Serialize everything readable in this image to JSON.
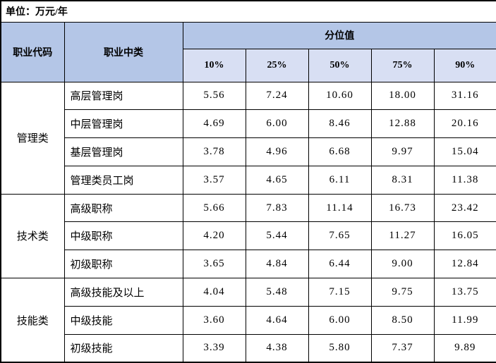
{
  "unit_label": "单位：万元/年",
  "colors": {
    "header_dark": "#b4c6e7",
    "header_light": "#d8dff3",
    "border": "#000000",
    "body_bg": "#ffffff"
  },
  "header": {
    "col_code": "职业代码",
    "col_category": "职业中类",
    "percentile_group": "分位值",
    "percentiles": [
      "10%",
      "25%",
      "50%",
      "75%",
      "90%"
    ]
  },
  "groups": [
    {
      "name": "管理类",
      "rows": [
        {
          "label": "高层管理岗",
          "values": [
            "5.56",
            "7.24",
            "10.60",
            "18.00",
            "31.16"
          ]
        },
        {
          "label": "中层管理岗",
          "values": [
            "4.69",
            "6.00",
            "8.46",
            "12.88",
            "20.16"
          ]
        },
        {
          "label": "基层管理岗",
          "values": [
            "3.78",
            "4.96",
            "6.68",
            "9.97",
            "15.04"
          ]
        },
        {
          "label": "管理类员工岗",
          "values": [
            "3.57",
            "4.65",
            "6.11",
            "8.31",
            "11.38"
          ]
        }
      ]
    },
    {
      "name": "技术类",
      "rows": [
        {
          "label": "高级职称",
          "values": [
            "5.66",
            "7.83",
            "11.14",
            "16.73",
            "23.42"
          ]
        },
        {
          "label": "中级职称",
          "values": [
            "4.20",
            "5.44",
            "7.65",
            "11.27",
            "16.05"
          ]
        },
        {
          "label": "初级职称",
          "values": [
            "3.65",
            "4.84",
            "6.44",
            "9.00",
            "12.84"
          ]
        }
      ]
    },
    {
      "name": "技能类",
      "rows": [
        {
          "label": "高级技能及以上",
          "values": [
            "4.04",
            "5.48",
            "7.15",
            "9.75",
            "13.75"
          ]
        },
        {
          "label": "中级技能",
          "values": [
            "3.60",
            "4.64",
            "6.00",
            "8.50",
            "11.99"
          ]
        },
        {
          "label": "初级技能",
          "values": [
            "3.39",
            "4.38",
            "5.80",
            "7.37",
            "9.89"
          ]
        }
      ]
    }
  ]
}
